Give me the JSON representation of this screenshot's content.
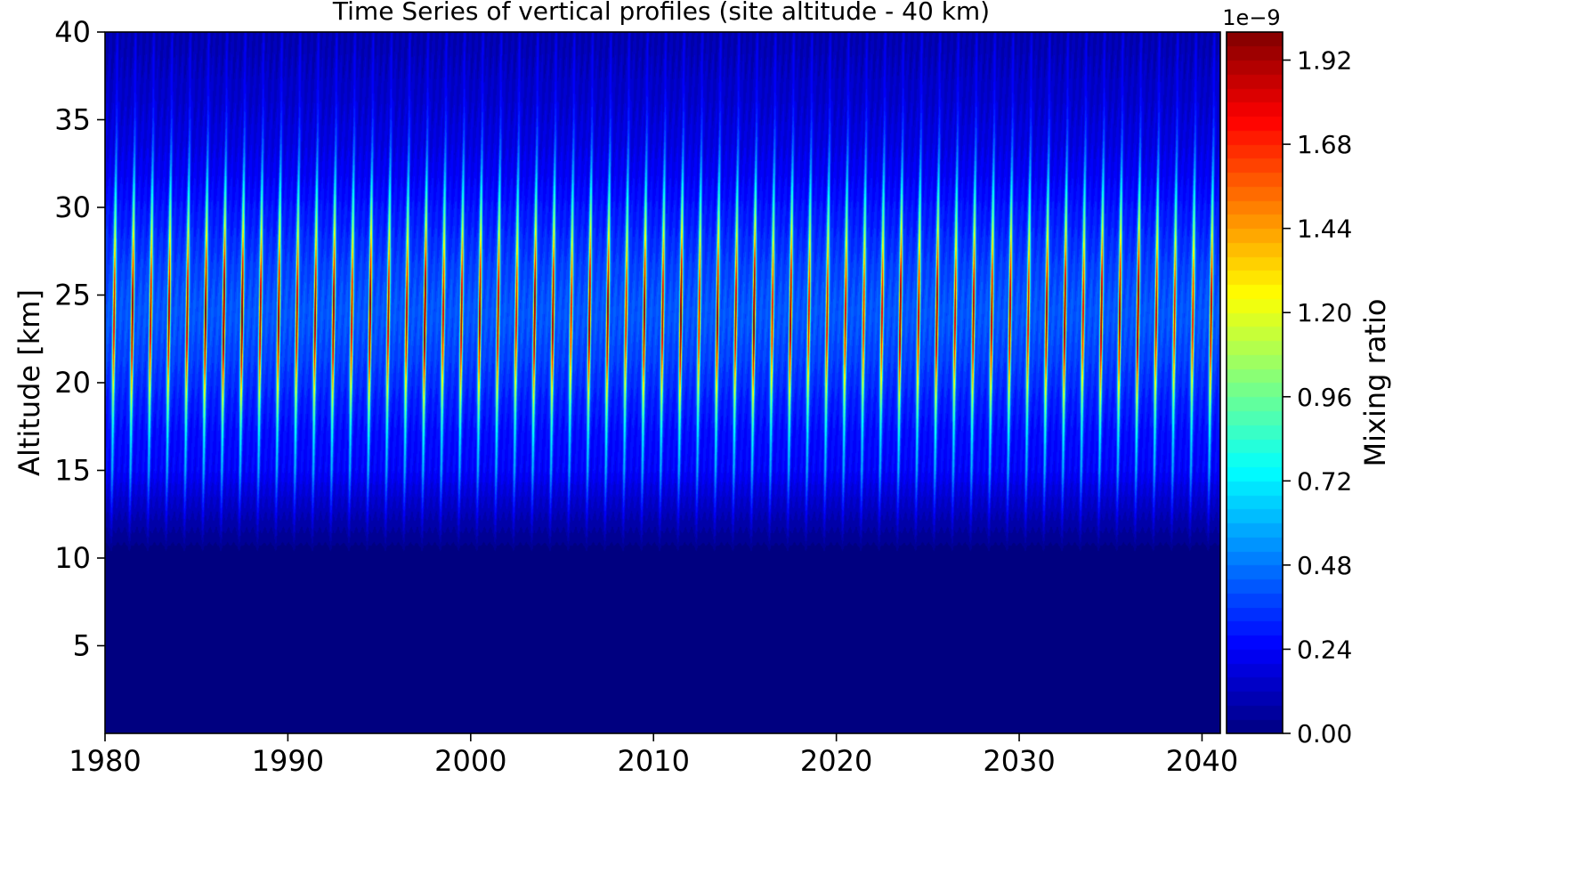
{
  "chart_data": {
    "type": "heatmap",
    "title": "Time Series of vertical profiles (site altitude - 40 km)",
    "xlabel": "",
    "ylabel": "Altitude [km]",
    "xlim": [
      1980,
      2041
    ],
    "ylim": [
      0,
      40
    ],
    "x_ticks": [
      1980,
      1990,
      2000,
      2010,
      2020,
      2030,
      2040
    ],
    "x_tick_labels": [
      "1980",
      "1990",
      "2000",
      "2010",
      "2020",
      "2030",
      "2040"
    ],
    "y_ticks": [
      5,
      10,
      15,
      20,
      25,
      30,
      35,
      40
    ],
    "y_tick_labels": [
      "5",
      "10",
      "15",
      "20",
      "25",
      "30",
      "35",
      "40"
    ],
    "grid": false,
    "colormap": "jet",
    "colorbar": {
      "label": "Mixing ratio",
      "offset_text": "1e−9",
      "range": [
        0.0,
        2.0
      ],
      "ticks": [
        0.0,
        0.24,
        0.48,
        0.72,
        0.96,
        1.2,
        1.44,
        1.68,
        1.92
      ],
      "tick_labels": [
        "0.00",
        "0.24",
        "0.48",
        "0.72",
        "0.96",
        "1.20",
        "1.44",
        "1.68",
        "1.92"
      ]
    },
    "field_description_values": {
      "cycles_per_year": 1,
      "zero_below_altitude_km": 10,
      "peak_altitude_km": 24,
      "peak_value_max": 1.75,
      "background_max_value": 0.8
    }
  },
  "colors": {
    "background": "#ffffff",
    "axis": "#000000",
    "jet_low": "#00007f",
    "jet_high": "#7f0000"
  }
}
